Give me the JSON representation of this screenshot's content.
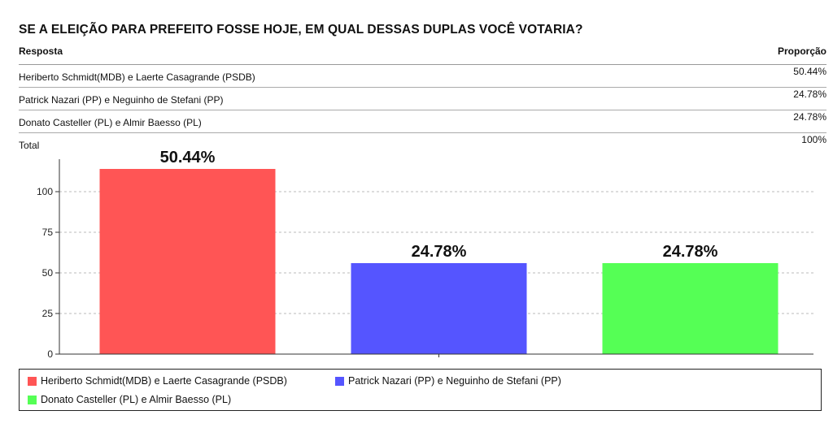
{
  "question": "SE A ELEIÇÃO PARA PREFEITO FOSSE HOJE, EM QUAL DESSAS DUPLAS  VOCÊ VOTARIA?",
  "table": {
    "col_response": "Resposta",
    "col_proportion": "Proporção",
    "rows": [
      {
        "label": "Heriberto Schmidt(MDB) e Laerte Casagrande (PSDB)",
        "value": "50.44%"
      },
      {
        "label": "Patrick Nazari (PP) e Neguinho de Stefani (PP)",
        "value": "24.78%"
      },
      {
        "label": "Donato Casteller (PL) e Almir Baesso (PL)",
        "value": "24.78%"
      }
    ],
    "total_label": "Total",
    "total_value": "100%"
  },
  "chart_data": {
    "type": "bar",
    "categories": [
      "Heriberto Schmidt(MDB) e Laerte Casagrande (PSDB)",
      "Patrick Nazari (PP) e Neguinho de Stefani (PP)",
      "Donato Casteller (PL) e Almir Baesso (PL)"
    ],
    "values": [
      114,
      56,
      56
    ],
    "data_labels": [
      "50.44%",
      "24.78%",
      "24.78%"
    ],
    "colors": [
      "#ff5555",
      "#5555ff",
      "#55ff55"
    ],
    "yticks": [
      0,
      25,
      50,
      75,
      100
    ],
    "ylim": [
      0,
      120
    ],
    "grid": true,
    "legend_position": "bottom"
  }
}
